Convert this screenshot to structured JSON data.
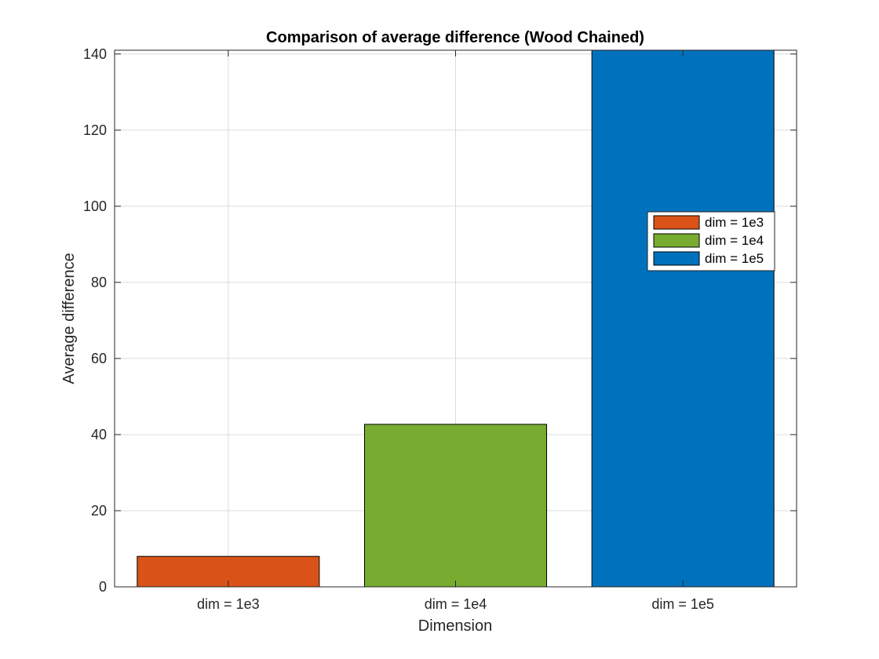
{
  "chart_data": {
    "type": "bar",
    "title": "Comparison of average difference (Wood Chained)",
    "xlabel": "Dimension",
    "ylabel": "Average difference",
    "categories": [
      "dim = 1e3",
      "dim = 1e4",
      "dim = 1e5"
    ],
    "values": [
      8,
      42.7,
      141
    ],
    "colors": [
      "#D95319",
      "#77AC30",
      "#0072BD"
    ],
    "ylim": [
      0,
      141
    ],
    "yticks": [
      0,
      20,
      40,
      60,
      80,
      100,
      120,
      140
    ],
    "grid": true,
    "legend": {
      "position": "right",
      "entries": [
        "dim = 1e3",
        "dim = 1e4",
        "dim = 1e5"
      ]
    }
  }
}
